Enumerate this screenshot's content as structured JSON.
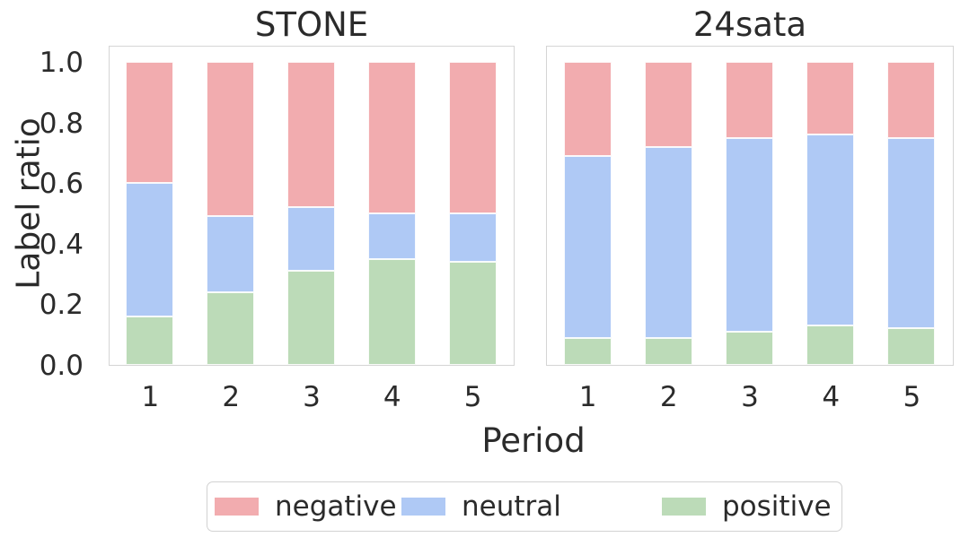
{
  "figure": {
    "ylabel": "Label ratio",
    "xlabel": "Period",
    "text_color": "#2b2b2b",
    "frame_color": "#d5d5d5",
    "legend": {
      "position": "lower center",
      "items": [
        {
          "label": "negative",
          "color": "#f2acaf"
        },
        {
          "label": "neutral",
          "color": "#afc9f5"
        },
        {
          "label": "positive",
          "color": "#bcdbb8"
        }
      ]
    }
  },
  "chart_data": [
    {
      "type": "bar",
      "stacked": true,
      "title": "STONE",
      "xlabel": "Period",
      "ylabel": "Label ratio",
      "categories": [
        "1",
        "2",
        "3",
        "4",
        "5"
      ],
      "series": [
        {
          "name": "positive",
          "color": "#bcdbb8",
          "values": [
            0.16,
            0.24,
            0.31,
            0.35,
            0.34
          ]
        },
        {
          "name": "neutral",
          "color": "#afc9f5",
          "values": [
            0.44,
            0.25,
            0.21,
            0.15,
            0.16
          ]
        },
        {
          "name": "negative",
          "color": "#f2acaf",
          "values": [
            0.4,
            0.51,
            0.48,
            0.5,
            0.5
          ]
        }
      ],
      "ylim": [
        0,
        1.05
      ],
      "yticks": [
        0.0,
        0.2,
        0.4,
        0.6,
        0.8,
        1.0
      ],
      "grid": false,
      "legend_position": "lower center"
    },
    {
      "type": "bar",
      "stacked": true,
      "title": "24sata",
      "xlabel": "Period",
      "ylabel": "Label ratio",
      "categories": [
        "1",
        "2",
        "3",
        "4",
        "5"
      ],
      "series": [
        {
          "name": "positive",
          "color": "#bcdbb8",
          "values": [
            0.09,
            0.09,
            0.11,
            0.13,
            0.12
          ]
        },
        {
          "name": "neutral",
          "color": "#afc9f5",
          "values": [
            0.6,
            0.63,
            0.64,
            0.63,
            0.63
          ]
        },
        {
          "name": "negative",
          "color": "#f2acaf",
          "values": [
            0.31,
            0.28,
            0.25,
            0.24,
            0.25
          ]
        }
      ],
      "ylim": [
        0,
        1.05
      ],
      "yticks": [
        0.0,
        0.2,
        0.4,
        0.6,
        0.8,
        1.0
      ],
      "grid": false,
      "legend_position": "lower center"
    }
  ]
}
